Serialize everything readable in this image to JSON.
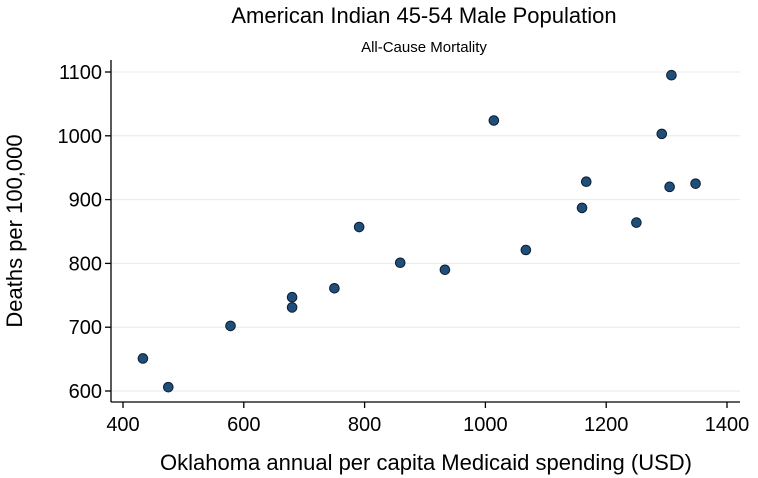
{
  "chart_data": {
    "type": "scatter",
    "title": "American Indian 45-54 Male Population",
    "subtitle": "All-Cause Mortality",
    "xlabel": "Oklahoma annual per capita Medicaid spending (USD)",
    "ylabel": "Deaths per 100,000",
    "xlim": [
      400,
      1400
    ],
    "ylim": [
      600,
      1100
    ],
    "xticks": [
      400,
      600,
      800,
      1000,
      1200,
      1400
    ],
    "yticks": [
      600,
      700,
      800,
      900,
      1000,
      1100
    ],
    "grid": true,
    "marker_color": "#1f4e79",
    "points": [
      {
        "x": 433,
        "y": 651
      },
      {
        "x": 475,
        "y": 606
      },
      {
        "x": 578,
        "y": 702
      },
      {
        "x": 680,
        "y": 747
      },
      {
        "x": 680,
        "y": 731
      },
      {
        "x": 750,
        "y": 761
      },
      {
        "x": 791,
        "y": 857
      },
      {
        "x": 859,
        "y": 801
      },
      {
        "x": 933,
        "y": 790
      },
      {
        "x": 1014,
        "y": 1024
      },
      {
        "x": 1067,
        "y": 821
      },
      {
        "x": 1160,
        "y": 887
      },
      {
        "x": 1167,
        "y": 928
      },
      {
        "x": 1250,
        "y": 864
      },
      {
        "x": 1292,
        "y": 1003
      },
      {
        "x": 1305,
        "y": 920
      },
      {
        "x": 1308,
        "y": 1095
      },
      {
        "x": 1348,
        "y": 925
      }
    ]
  }
}
